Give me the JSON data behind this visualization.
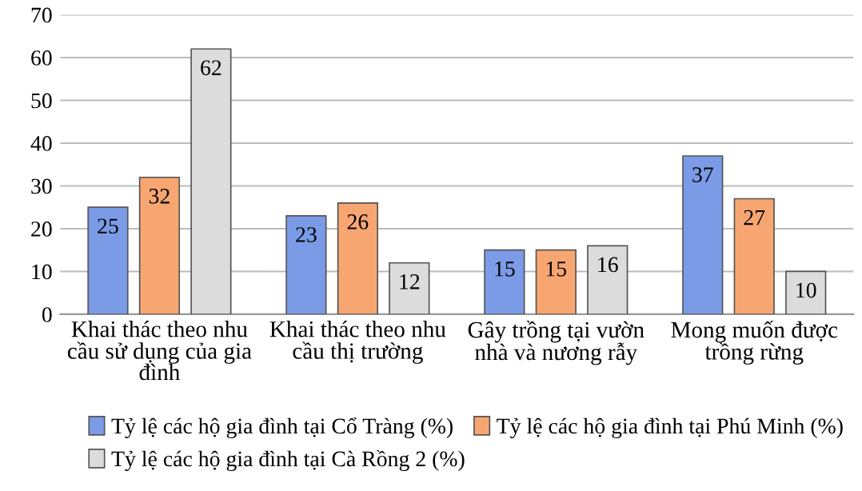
{
  "chart_data": {
    "type": "bar",
    "categories": [
      "Khai thác theo nhu cầu sử dụng của gia đình",
      "Khai thác theo nhu cầu thị trường",
      "Gây trồng tại vườn nhà và nương rẫy",
      "Mong muốn được trồng rừng"
    ],
    "series": [
      {
        "name": "Tỷ lệ các hộ gia đình tại Cổ Tràng (%)",
        "color": "#7b9be6",
        "values": [
          25,
          23,
          15,
          37
        ]
      },
      {
        "name": "Tỷ lệ các hộ gia đình tại Phú Minh (%)",
        "color": "#f7a672",
        "values": [
          32,
          26,
          15,
          27
        ]
      },
      {
        "name": "Tỷ lệ các hộ gia đình tại Cà Rồng 2 (%)",
        "color": "#dcdcdc",
        "values": [
          62,
          12,
          16,
          10
        ]
      }
    ],
    "ylim": [
      0,
      70
    ],
    "yticks": [
      0,
      10,
      20,
      30,
      40,
      50,
      60,
      70
    ],
    "grid": "y",
    "legend": "bottom",
    "data_labels": true
  }
}
